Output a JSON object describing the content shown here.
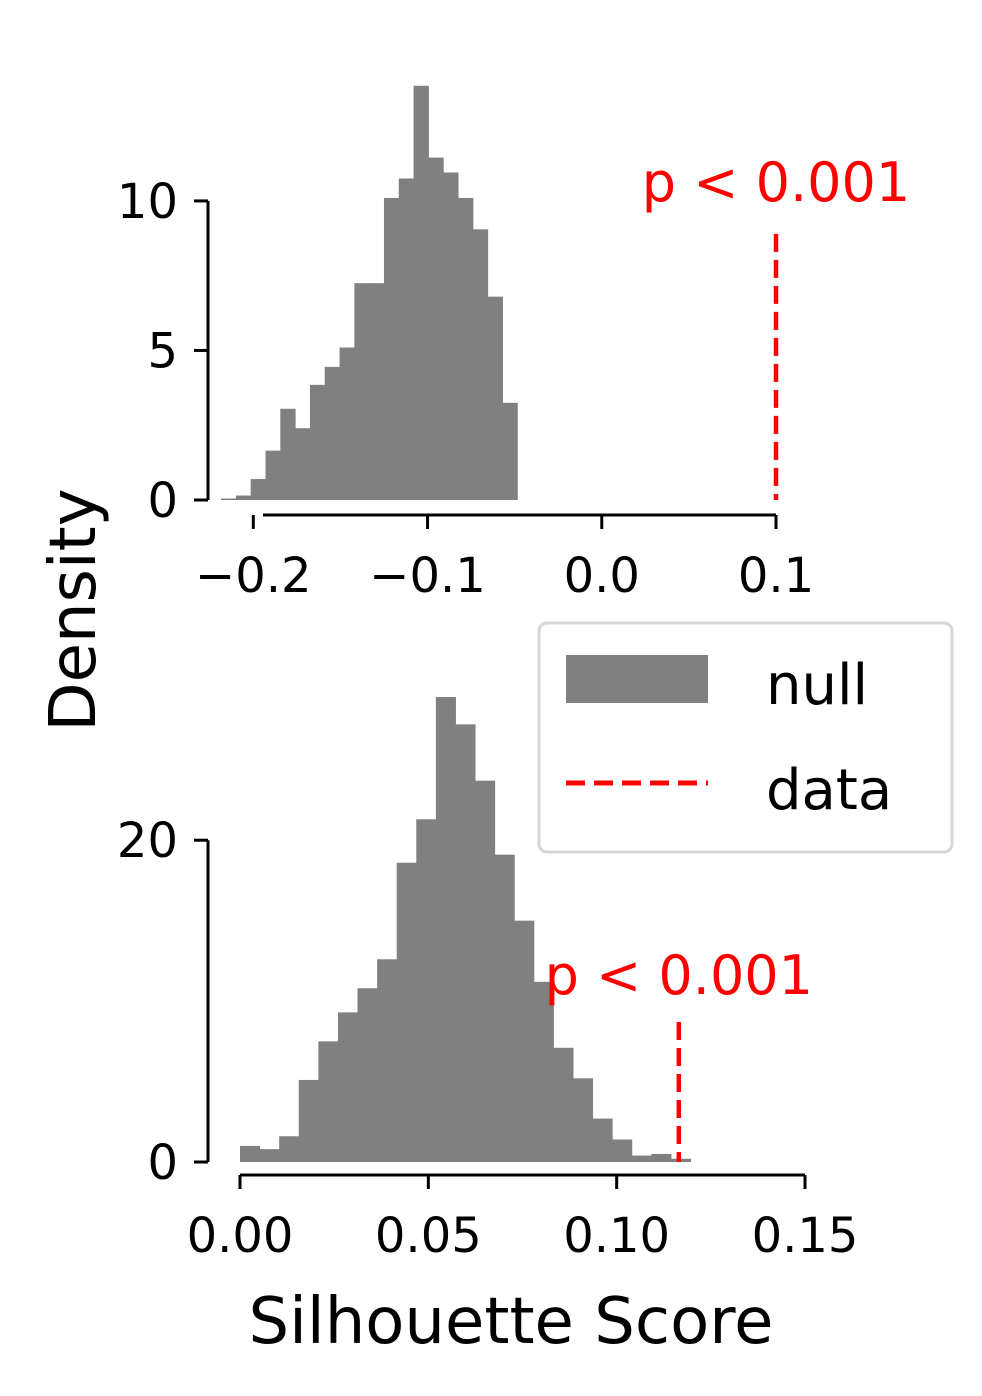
{
  "figure": {
    "ylabel": "Density",
    "xlabel": "Silhouette Score",
    "colors": {
      "hist": "#808080",
      "data_line": "#ff0000",
      "annotation": "#ff0000",
      "axis": "#000000"
    }
  },
  "legend": {
    "placement": "right, between panels",
    "entries": [
      {
        "label": "null",
        "kind": "bar",
        "color": "#808080"
      },
      {
        "label": "data",
        "kind": "dashed-line",
        "color": "#ff0000"
      }
    ]
  },
  "chart_data": [
    {
      "type": "bar",
      "subtype": "histogram-density",
      "panel": "top",
      "xlim": [
        -0.226,
        0.1
      ],
      "ylim": [
        0,
        10.8
      ],
      "xticks": [
        -0.2,
        -0.1,
        0.0,
        0.1
      ],
      "xtick_labels": [
        "−0.2",
        "−0.1",
        "0.0",
        "0.1"
      ],
      "yticks": [
        0,
        5,
        10
      ],
      "ytick_labels": [
        "0",
        "5",
        "10"
      ],
      "bin_width": 0.0085,
      "bin_edges_start": -0.2185,
      "values": [
        0.05,
        0.15,
        0.7,
        1.65,
        3.05,
        2.4,
        3.85,
        4.45,
        5.1,
        7.25,
        7.25,
        10.1,
        10.75,
        13.85,
        11.45,
        10.95,
        10.1,
        9.05,
        6.8,
        3.25
      ],
      "series": [
        {
          "name": "null",
          "kind": "histogram"
        },
        {
          "name": "data",
          "kind": "vline",
          "x": 0.1,
          "y_top": 8.9
        }
      ],
      "annotation": {
        "text": "p < 0.001",
        "x": 0.1,
        "y": 9.6
      }
    },
    {
      "type": "bar",
      "subtype": "histogram-density",
      "panel": "bottom",
      "xlim": [
        0.0,
        0.15
      ],
      "ylim": [
        0,
        20.2
      ],
      "xticks": [
        0.0,
        0.05,
        0.1,
        0.15
      ],
      "xtick_labels": [
        "0.00",
        "0.05",
        "0.10",
        "0.15"
      ],
      "yticks": [
        0,
        20
      ],
      "ytick_labels": [
        "0",
        "20"
      ],
      "bin_width": 0.0052,
      "bin_edges_start": 0.0,
      "values": [
        1.0,
        0.8,
        1.6,
        5.1,
        7.5,
        9.3,
        10.8,
        12.6,
        18.6,
        21.3,
        28.9,
        27.2,
        23.7,
        19.1,
        15.0,
        11.2,
        7.1,
        5.2,
        2.7,
        1.4,
        0.4,
        0.5,
        0.2
      ],
      "series": [
        {
          "name": "null",
          "kind": "histogram"
        },
        {
          "name": "data",
          "kind": "vline",
          "x": 0.1165,
          "y_top": 8.7
        }
      ],
      "annotation": {
        "text": "p < 0.001",
        "x": 0.1165,
        "y": 9.7
      }
    }
  ]
}
